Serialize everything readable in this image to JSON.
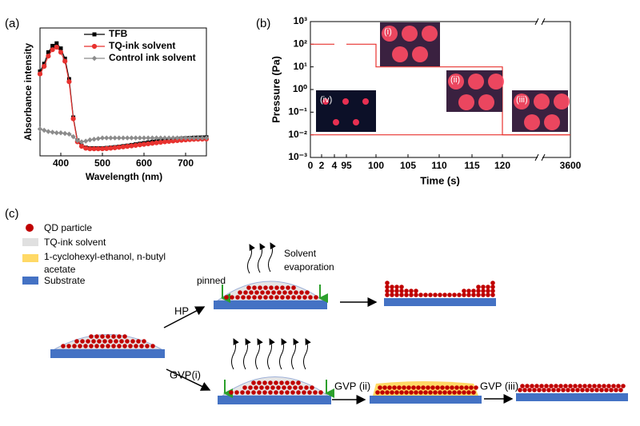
{
  "chart_data": [
    {
      "type": "line",
      "panel_label": "(a)",
      "xlabel": "Wavelength (nm)",
      "ylabel": "Absorbance intensity",
      "xlim": [
        350,
        750
      ],
      "xticks": [
        400,
        500,
        600,
        700
      ],
      "ylim": [
        0,
        1
      ],
      "legend": "upper right",
      "x": [
        350,
        360,
        370,
        380,
        390,
        400,
        410,
        420,
        430,
        440,
        450,
        460,
        470,
        480,
        490,
        500,
        510,
        520,
        530,
        540,
        550,
        560,
        570,
        580,
        590,
        600,
        610,
        620,
        630,
        640,
        650,
        660,
        670,
        680,
        690,
        700,
        710,
        720,
        730,
        740,
        750
      ],
      "series": [
        {
          "name": "TFB",
          "color": "#000000",
          "marker": "square",
          "values": [
            0.66,
            0.72,
            0.81,
            0.86,
            0.88,
            0.84,
            0.76,
            0.6,
            0.3,
            0.12,
            0.08,
            0.065,
            0.06,
            0.06,
            0.06,
            0.06,
            0.062,
            0.065,
            0.068,
            0.072,
            0.076,
            0.08,
            0.085,
            0.09,
            0.095,
            0.1,
            0.105,
            0.11,
            0.114,
            0.118,
            0.122,
            0.126,
            0.13,
            0.133,
            0.136,
            0.138,
            0.14,
            0.142,
            0.143,
            0.144,
            0.145
          ]
        },
        {
          "name": "TQ-ink solvent",
          "color": "#e8322f",
          "marker": "circle",
          "values": [
            0.64,
            0.7,
            0.78,
            0.83,
            0.85,
            0.81,
            0.74,
            0.58,
            0.29,
            0.11,
            0.075,
            0.06,
            0.055,
            0.055,
            0.055,
            0.055,
            0.057,
            0.06,
            0.063,
            0.067,
            0.07,
            0.074,
            0.078,
            0.082,
            0.086,
            0.09,
            0.094,
            0.098,
            0.102,
            0.106,
            0.11,
            0.113,
            0.116,
            0.119,
            0.122,
            0.125,
            0.127,
            0.129,
            0.13,
            0.131,
            0.132
          ]
        },
        {
          "name": "Control ink solvent",
          "color": "#8c8c8c",
          "marker": "diamond",
          "values": [
            0.21,
            0.2,
            0.19,
            0.185,
            0.18,
            0.18,
            0.175,
            0.17,
            0.15,
            0.12,
            0.11,
            0.115,
            0.125,
            0.13,
            0.135,
            0.14,
            0.14,
            0.14,
            0.14,
            0.14,
            0.14,
            0.14,
            0.14,
            0.14,
            0.14,
            0.14,
            0.14,
            0.14,
            0.14,
            0.14,
            0.14,
            0.14,
            0.14,
            0.14,
            0.14,
            0.14,
            0.14,
            0.14,
            0.14,
            0.14,
            0.14
          ]
        }
      ]
    },
    {
      "type": "step",
      "panel_label": "(b)",
      "xlabel": "Time (s)",
      "ylabel": "Pressure (Pa)",
      "xlim": [
        0,
        3600
      ],
      "xticks": [
        0,
        2,
        4,
        95,
        100,
        105,
        110,
        115,
        120,
        3600
      ],
      "xbreak": true,
      "ylog": true,
      "ylim": [
        0.001,
        1000
      ],
      "yticks": [
        {
          "value": 0.001,
          "label": "10⁻³"
        },
        {
          "value": 0.01,
          "label": "10⁻²"
        },
        {
          "value": 0.1,
          "label": "10⁻¹"
        },
        {
          "value": 1,
          "label": "10⁰"
        },
        {
          "value": 10,
          "label": "10¹"
        },
        {
          "value": 100,
          "label": "10²"
        },
        {
          "value": 1000,
          "label": "10³"
        }
      ],
      "annotations": [
        "(i)",
        "(ii)",
        "(iii)",
        "(iv)"
      ],
      "series": [
        {
          "color": "#e8322f",
          "x": [
            0,
            4,
            null,
            95,
            100,
            100,
            120,
            120,
            3600
          ],
          "values": [
            100,
            100,
            null,
            100,
            100,
            10,
            10,
            0.01,
            0.01
          ]
        },
        {
          "color": "#e8322f",
          "x": [
            0,
            3600
          ],
          "values": [
            0.01,
            0.01
          ]
        }
      ]
    }
  ],
  "diagram": {
    "panel_label": "(c)",
    "legend": [
      [
        "QD particle"
      ],
      [
        "TQ-ink solvent"
      ],
      [
        "1-cyclohexyl-ethanol, n-butyl",
        "acetate"
      ],
      [
        "Substrate"
      ]
    ],
    "evaporation": [
      "Solvent",
      "evaporation"
    ],
    "pinned": "pinned",
    "steps": [
      "HP",
      "GVP(i)",
      "GVP (ii)",
      "GVP (iii)"
    ]
  }
}
